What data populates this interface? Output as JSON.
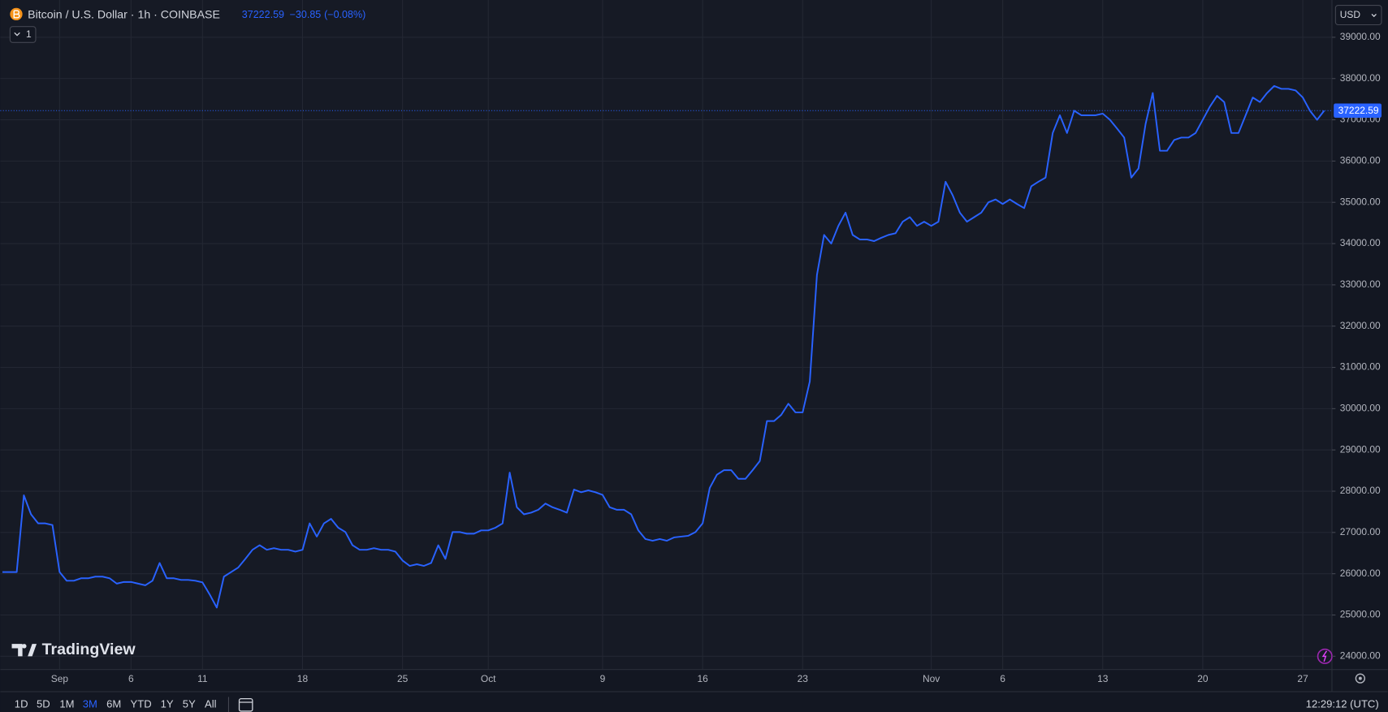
{
  "chart_data": {
    "type": "line",
    "title": "Bitcoin / U.S. Dollar · 1h · COINBASE",
    "last_price": 37222.59,
    "change": {
      "value": -30.85,
      "label": "−30.85"
    },
    "change_pct": {
      "value": -0.08,
      "label": "(−0.08%)"
    },
    "color": "#2962ff",
    "categories": [
      null,
      null,
      null,
      null,
      null,
      null,
      null,
      null,
      "Sep",
      null,
      null,
      null,
      null,
      null,
      null,
      null,
      null,
      null,
      "6",
      null,
      null,
      null,
      null,
      null,
      null,
      null,
      null,
      null,
      "11",
      null,
      null,
      null,
      null,
      null,
      null,
      null,
      null,
      null,
      null,
      null,
      null,
      null,
      "18",
      null,
      null,
      null,
      null,
      null,
      null,
      null,
      null,
      null,
      null,
      null,
      null,
      null,
      "25",
      null,
      null,
      null,
      null,
      null,
      null,
      null,
      null,
      null,
      null,
      null,
      "Oct",
      null,
      null,
      null,
      null,
      null,
      null,
      null,
      null,
      null,
      null,
      null,
      null,
      null,
      null,
      null,
      "9",
      null,
      null,
      null,
      null,
      null,
      null,
      null,
      null,
      null,
      null,
      null,
      null,
      null,
      "16",
      null,
      null,
      null,
      null,
      null,
      null,
      null,
      null,
      null,
      null,
      null,
      null,
      null,
      "23",
      null,
      null,
      null,
      null,
      null,
      null,
      null,
      null,
      null,
      null,
      null,
      null,
      null,
      null,
      null,
      null,
      null,
      "Nov",
      null,
      null,
      null,
      null,
      null,
      null,
      null,
      null,
      null,
      "6",
      null,
      null,
      null,
      null,
      null,
      null,
      null,
      null,
      null,
      null,
      null,
      null,
      null,
      "13",
      null,
      null,
      null,
      null,
      null,
      null,
      null,
      null,
      null,
      null,
      null,
      null,
      null,
      "20",
      null,
      null,
      null,
      null,
      null,
      null,
      null,
      null,
      null,
      null,
      null,
      null,
      null,
      "27",
      null,
      null,
      null
    ],
    "values": [
      26040,
      26040,
      26040,
      27900,
      27440,
      27220,
      27220,
      27180,
      26040,
      25830,
      25830,
      25890,
      25890,
      25930,
      25930,
      25890,
      25760,
      25800,
      25800,
      25760,
      25720,
      25830,
      26260,
      25890,
      25890,
      25850,
      25850,
      25830,
      25790,
      25500,
      25180,
      25930,
      26040,
      26150,
      26360,
      26580,
      26690,
      26580,
      26620,
      26580,
      26580,
      26535,
      26580,
      27220,
      26900,
      27220,
      27330,
      27115,
      27010,
      26690,
      26580,
      26580,
      26620,
      26580,
      26580,
      26535,
      26320,
      26190,
      26230,
      26190,
      26260,
      26690,
      26360,
      27010,
      27010,
      26970,
      26970,
      27050,
      27050,
      27115,
      27220,
      28450,
      27610,
      27440,
      27480,
      27550,
      27700,
      27610,
      27550,
      27480,
      28040,
      27975,
      28020,
      27975,
      27910,
      27610,
      27550,
      27550,
      27440,
      27050,
      26840,
      26800,
      26840,
      26800,
      26880,
      26900,
      26920,
      27010,
      27220,
      28080,
      28400,
      28510,
      28510,
      28300,
      28300,
      28510,
      28730,
      29700,
      29700,
      29850,
      30120,
      29910,
      29910,
      30660,
      33240,
      34210,
      34000,
      34430,
      34750,
      34210,
      34100,
      34100,
      34060,
      34140,
      34210,
      34250,
      34530,
      34640,
      34430,
      34530,
      34430,
      34530,
      35500,
      35170,
      34750,
      34530,
      34640,
      34750,
      35000,
      35070,
      34960,
      35070,
      34960,
      34860,
      35390,
      35500,
      35600,
      36680,
      37110,
      36680,
      37220,
      37110,
      37110,
      37110,
      37150,
      37000,
      36790,
      36570,
      35600,
      35820,
      36900,
      37650,
      36250,
      36250,
      36510,
      36570,
      36570,
      36680,
      37000,
      37320,
      37580,
      37430,
      36680,
      36680,
      37110,
      37540,
      37430,
      37650,
      37820,
      37750,
      37750,
      37710,
      37540,
      37220,
      37000,
      37222.59
    ],
    "ylim": [
      23678,
      39903
    ],
    "yticks": [
      {
        "value": 24000,
        "label": "24000.00"
      },
      {
        "value": 25000,
        "label": "25000.00"
      },
      {
        "value": 26000,
        "label": "26000.00"
      },
      {
        "value": 27000,
        "label": "27000.00"
      },
      {
        "value": 28000,
        "label": "28000.00"
      },
      {
        "value": 29000,
        "label": "29000.00"
      },
      {
        "value": 30000,
        "label": "30000.00"
      },
      {
        "value": 31000,
        "label": "31000.00"
      },
      {
        "value": 32000,
        "label": "32000.00"
      },
      {
        "value": 33000,
        "label": "33000.00"
      },
      {
        "value": 34000,
        "label": "34000.00"
      },
      {
        "value": 35000,
        "label": "35000.00"
      },
      {
        "value": 36000,
        "label": "36000.00"
      },
      {
        "value": 37000,
        "label": "37000.00"
      },
      {
        "value": 38000,
        "label": "38000.00"
      },
      {
        "value": 39000,
        "label": "39000.00"
      }
    ],
    "grid": true
  },
  "ui": {
    "interval": "1",
    "currency": "USD",
    "brand": "TradingView",
    "ranges": [
      "1D",
      "5D",
      "1M",
      "3M",
      "6M",
      "YTD",
      "1Y",
      "5Y",
      "All"
    ],
    "active_range": "3M",
    "clock": "12:29:12 (UTC)"
  }
}
